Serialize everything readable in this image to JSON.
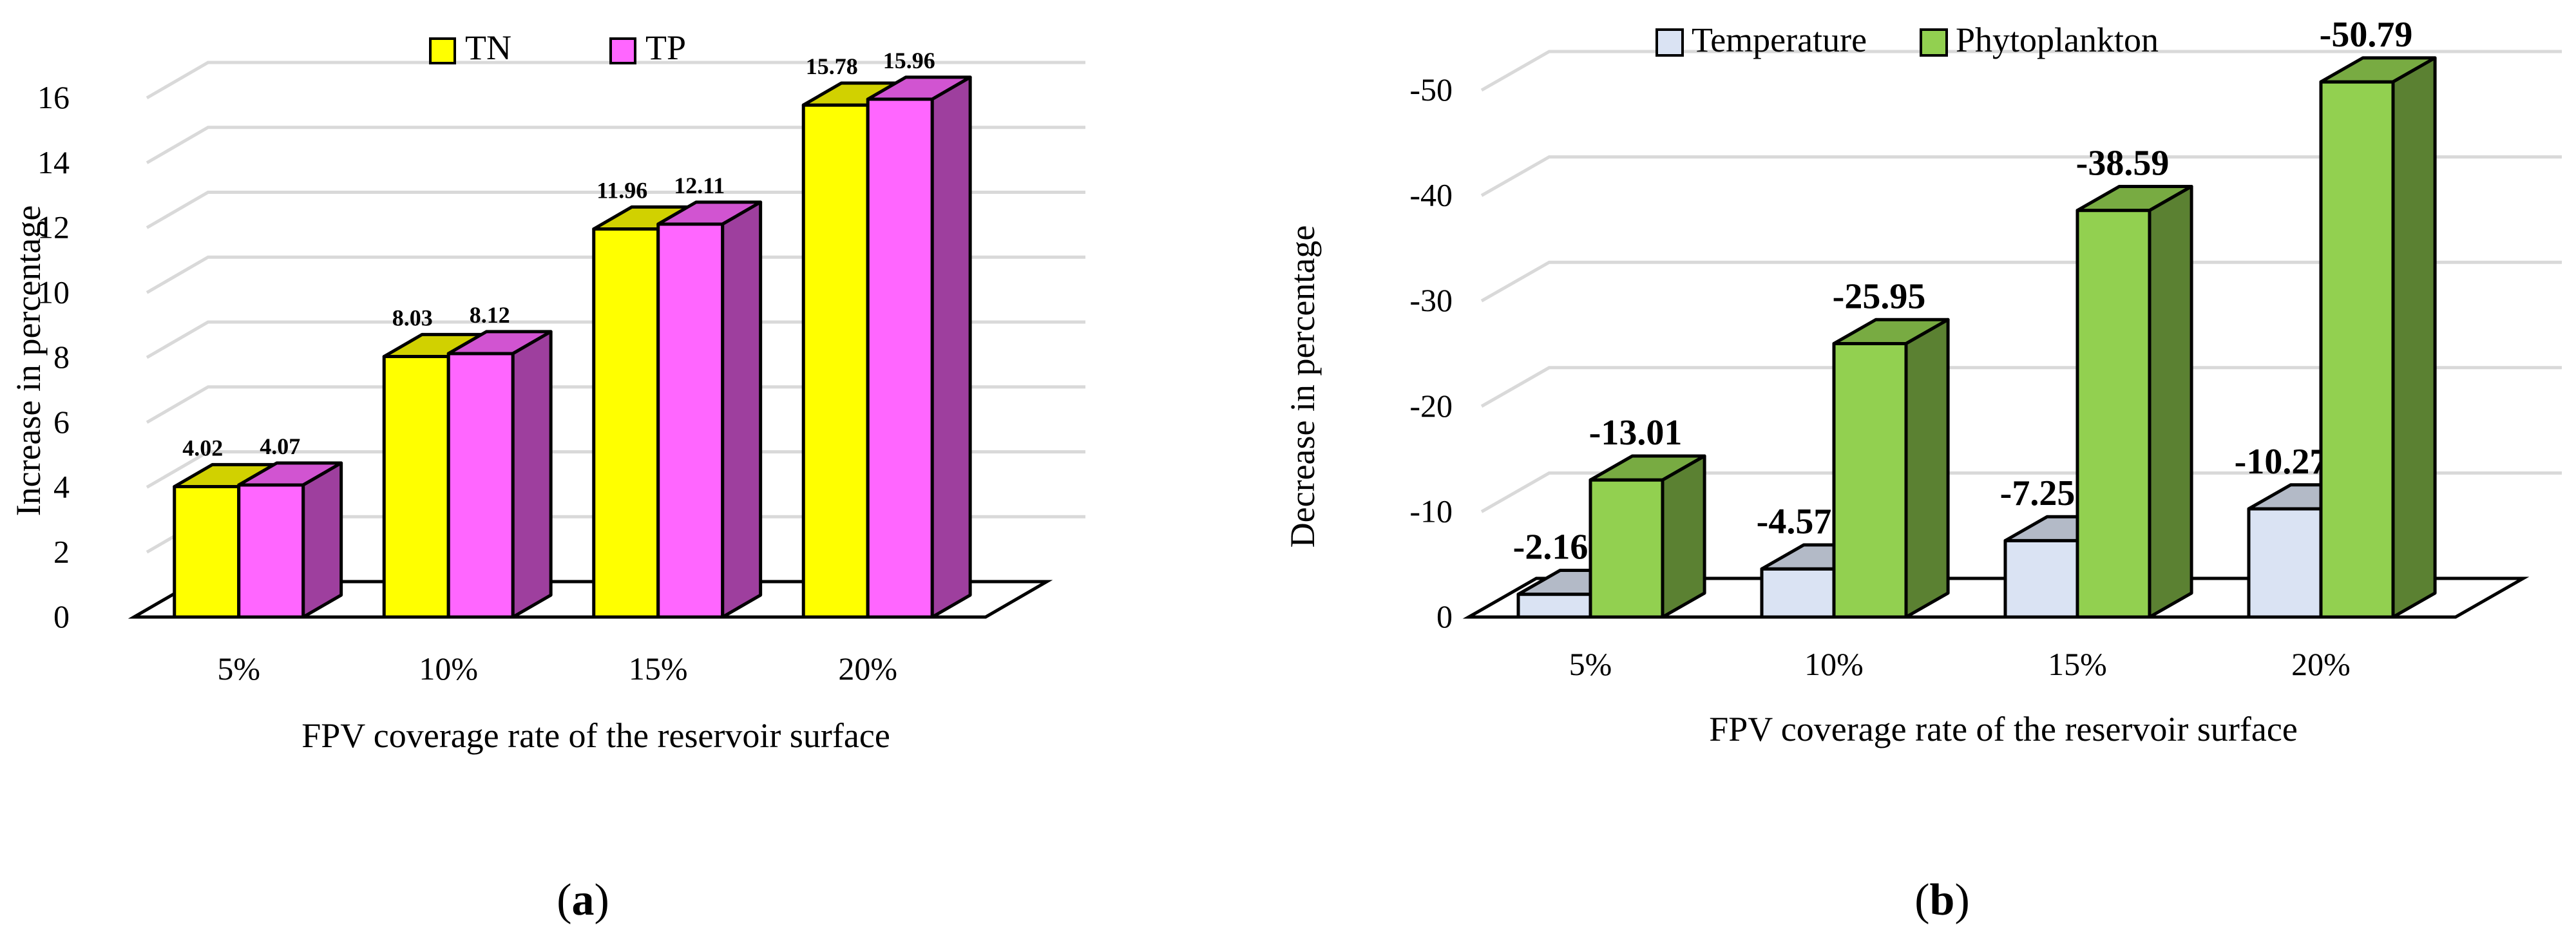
{
  "chart_data": [
    {
      "panel": "(a)",
      "panel_letter": "a",
      "type": "bar",
      "style": "3d-clustered-column",
      "title": "",
      "categories": [
        "5%",
        "10%",
        "15%",
        "20%"
      ],
      "series": [
        {
          "name": "TN",
          "values": [
            4.02,
            8.03,
            11.96,
            15.78
          ],
          "labels": [
            "4.02",
            "8.03",
            "11.96",
            "15.78"
          ],
          "color": "#ffff00"
        },
        {
          "name": "TP",
          "values": [
            4.07,
            8.12,
            12.11,
            15.96
          ],
          "labels": [
            "4.07",
            "8.12",
            "12.11",
            "15.96"
          ],
          "color": "#ff66ff"
        }
      ],
      "xlabel": "FPV coverage rate of the reservoir surface",
      "ylabel": "Increase in percentage",
      "ylim": [
        0,
        16
      ],
      "yticks": [
        0,
        2,
        4,
        6,
        8,
        10,
        12,
        14,
        16
      ],
      "ytick_labels": [
        "0",
        "2",
        "4",
        "6",
        "8",
        "10",
        "12",
        "14",
        "16"
      ],
      "grid": true,
      "legend_position": "top-center"
    },
    {
      "panel": "(b)",
      "panel_letter": "b",
      "type": "bar",
      "style": "3d-clustered-column",
      "title": "",
      "categories": [
        "5%",
        "10%",
        "15%",
        "20%"
      ],
      "series": [
        {
          "name": "Temperature",
          "values": [
            -2.16,
            -4.57,
            -7.25,
            -10.27
          ],
          "labels": [
            "-2.16",
            "-4.57",
            "-7.25",
            "-10.27"
          ],
          "color": "#dae3f3"
        },
        {
          "name": "Phytoplankton",
          "values": [
            -13.01,
            -25.95,
            -38.59,
            -50.79
          ],
          "labels": [
            "-13.01",
            "-25.95",
            "-38.59",
            "-50.79"
          ],
          "color": "#92d050"
        }
      ],
      "xlabel": "FPV coverage rate of the reservoir surface",
      "ylabel": "Decrease in percentage",
      "ylim": [
        0,
        -50
      ],
      "yticks": [
        0,
        -10,
        -20,
        -30,
        -40,
        -50
      ],
      "ytick_labels": [
        "0",
        "-10",
        "-20",
        "-30",
        "-40",
        "-50"
      ],
      "grid": true,
      "legend_position": "top-left"
    }
  ]
}
